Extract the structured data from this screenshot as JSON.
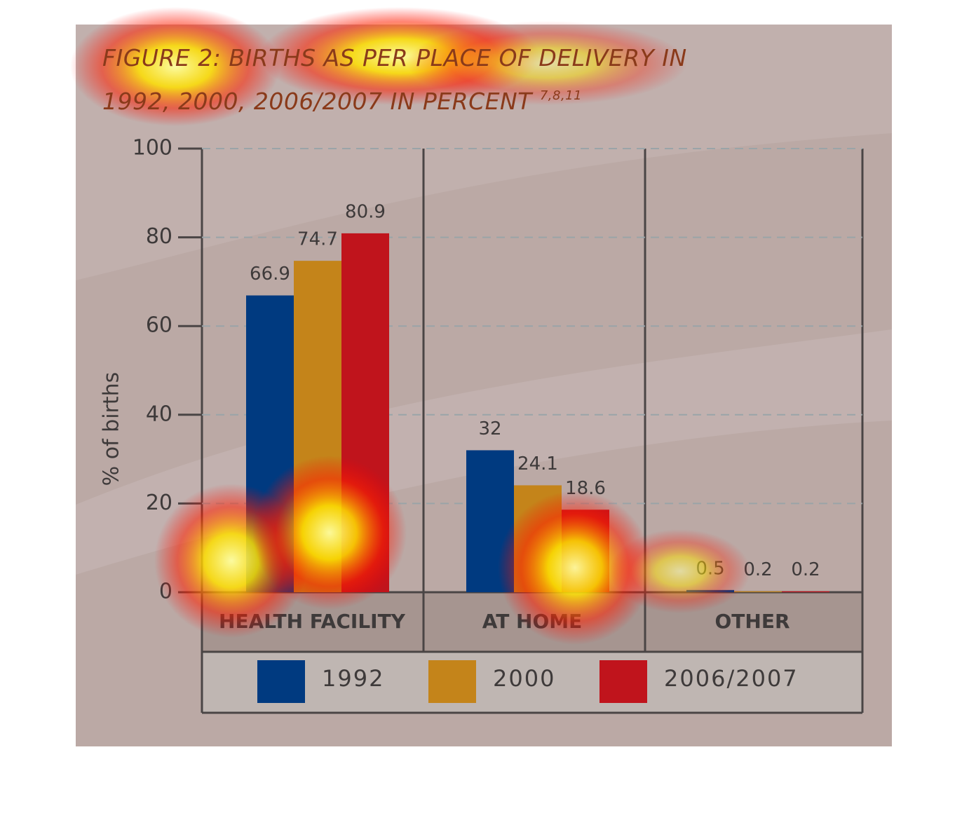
{
  "chart_data": {
    "type": "bar",
    "title": "FIGURE 2: BIRTHS AS PER PLACE OF DELIVERY IN 1992, 2000, 2006/2007 IN PERCENT",
    "title_reference": "7,8,11",
    "y_label": "% of births",
    "categories": [
      "HEALTH FACILITY",
      "AT HOME",
      "OTHER"
    ],
    "series": [
      {
        "name": "1992",
        "color": "#003a80",
        "values": [
          66.9,
          32,
          0.5
        ]
      },
      {
        "name": "2000",
        "color": "#c4841a",
        "values": [
          74.7,
          24.1,
          0.2
        ]
      },
      {
        "name": "2006/2007",
        "color": "#c0141c",
        "values": [
          80.9,
          18.6,
          0.2
        ]
      }
    ],
    "ylim": [
      0,
      100
    ],
    "yticks": [
      0,
      20,
      40,
      60,
      80,
      100
    ],
    "grid": true
  }
}
